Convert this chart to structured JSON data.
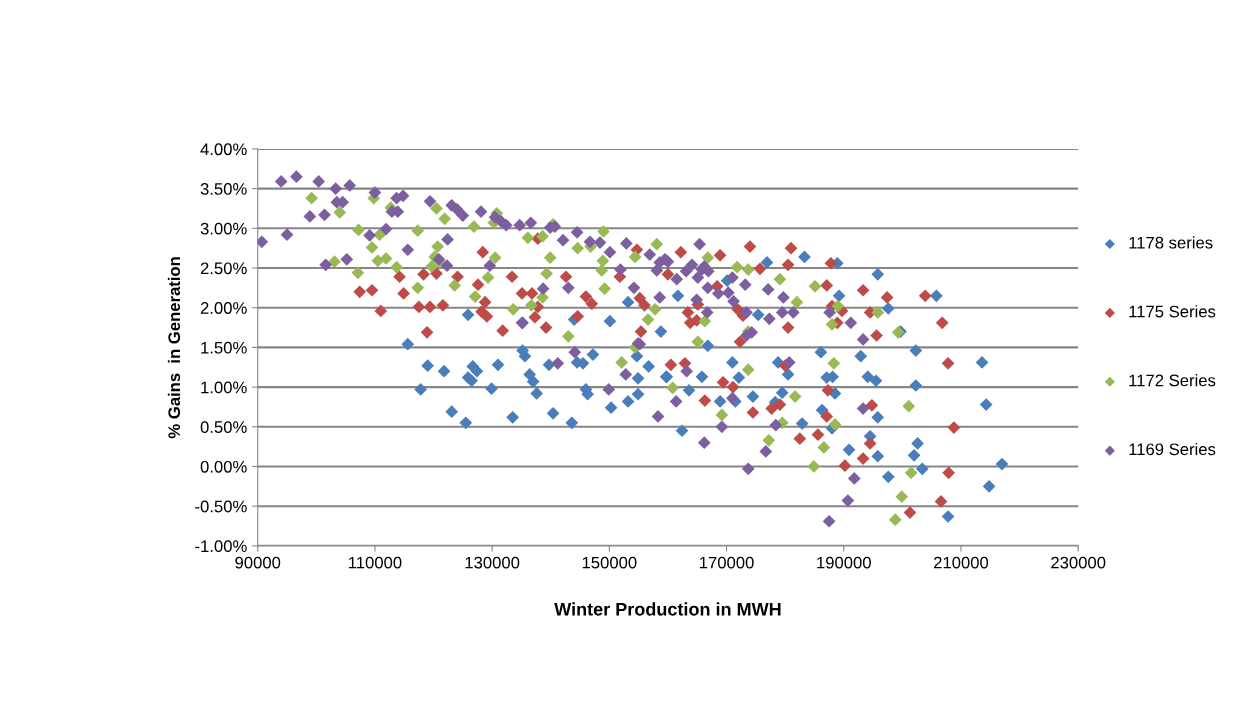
{
  "chart_data": {
    "type": "scatter",
    "xlabel": "Winter Production in MWH",
    "ylabel": "% Gains  in Generation",
    "xlim": [
      90000,
      230000
    ],
    "xticks": [
      90000,
      110000,
      130000,
      150000,
      170000,
      190000,
      210000,
      230000
    ],
    "ylim": [
      -1,
      4
    ],
    "yticks": [
      {
        "value": -1,
        "label": "-1.00%"
      },
      {
        "value": -0.5,
        "label": "-0.50%"
      },
      {
        "value": 0,
        "label": "0.00%"
      },
      {
        "value": 0.5,
        "label": "0.50%"
      },
      {
        "value": 1,
        "label": "1.00%"
      },
      {
        "value": 1.5,
        "label": "1.50%"
      },
      {
        "value": 2,
        "label": "2.00%"
      },
      {
        "value": 2.5,
        "label": "2.50%"
      },
      {
        "value": 3,
        "label": "3.00%"
      },
      {
        "value": 3.5,
        "label": "3.50%"
      },
      {
        "value": 4,
        "label": "4.00%"
      }
    ],
    "grid": "y",
    "legend": "right",
    "marker": "diamond",
    "series": [
      {
        "name": "1178 series",
        "color": "#4a7ebb",
        "x": [
          115600,
          119000,
          117800,
          121800,
          123100,
          125500,
          125900,
          126700,
          127400,
          126500,
          129900,
          131000,
          133500,
          135200,
          135600,
          136400,
          137000,
          137600,
          139700,
          140400,
          143600,
          144500,
          145500,
          146000,
          146300,
          147200,
          150300,
          153200,
          154900,
          154700,
          154900,
          156700,
          159700,
          125900,
          153200,
          150100,
          144000,
          135200,
          158800,
          161700,
          170100,
          176900,
          183300,
          188900,
          195800,
          189200,
          197600,
          175400,
          199700,
          205800,
          166800,
          159800,
          163600,
          165800,
          171000,
          172100,
          168900,
          171500,
          174500,
          162400,
          178800,
          180500,
          179500,
          178300,
          186100,
          187100,
          188100,
          188500,
          186300,
          188000,
          182900,
          192900,
          194100,
          195500,
          195800,
          194500,
          190900,
          195800,
          197600,
          202300,
          202300,
          202600,
          202000,
          203400,
          207800,
          213600,
          214300,
          214800,
          217000
        ],
        "values": [
          1.54,
          1.27,
          0.97,
          1.2,
          0.69,
          0.55,
          1.12,
          1.26,
          1.2,
          1.08,
          0.98,
          1.28,
          0.62,
          1.46,
          1.39,
          1.16,
          1.07,
          0.92,
          1.28,
          0.67,
          0.55,
          1.31,
          1.3,
          0.97,
          0.91,
          1.41,
          0.74,
          0.82,
          0.91,
          1.39,
          1.11,
          1.26,
          1.13,
          1.91,
          2.07,
          1.83,
          1.85,
          1.81,
          1.7,
          2.15,
          2.34,
          2.57,
          2.64,
          2.56,
          2.42,
          2.15,
          1.99,
          1.91,
          1.7,
          2.15,
          1.52,
          1.13,
          0.96,
          1.13,
          1.31,
          1.12,
          0.82,
          0.82,
          0.88,
          0.45,
          1.31,
          1.16,
          0.93,
          0.81,
          1.44,
          1.12,
          1.13,
          0.92,
          0.71,
          0.48,
          0.54,
          1.39,
          1.13,
          1.08,
          0.62,
          0.38,
          0.21,
          0.13,
          -0.13,
          1.46,
          1.02,
          0.29,
          0.14,
          -0.03,
          -0.63,
          1.31,
          0.78,
          -0.25,
          0.03
        ]
      },
      {
        "name": "1175 Series",
        "color": "#be4b48",
        "x": [
          107400,
          109500,
          111000,
          114200,
          114900,
          118300,
          120500,
          124100,
          118900,
          117500,
          119400,
          121600,
          128400,
          127600,
          128800,
          128200,
          129100,
          131800,
          133400,
          135100,
          136800,
          137800,
          137800,
          137300,
          139200,
          142600,
          144600,
          146000,
          147000,
          151800,
          154700,
          155200,
          156000,
          155400,
          160000,
          162200,
          168900,
          174000,
          181000,
          180500,
          187800,
          175700,
          168400,
          187100,
          193300,
          197400,
          203900,
          206800,
          163400,
          165100,
          163800,
          164900,
          171900,
          172800,
          188000,
          189700,
          188900,
          194500,
          180500,
          172300,
          195600,
          160500,
          162900,
          166300,
          169400,
          171100,
          174500,
          177700,
          179100,
          180000,
          182500,
          185600,
          187300,
          187100,
          190200,
          193300,
          194500,
          194800,
          201300,
          206600,
          207800,
          207900,
          208800
        ],
        "values": [
          2.2,
          2.22,
          1.96,
          2.39,
          2.18,
          2.42,
          2.43,
          2.39,
          1.69,
          2.01,
          2.01,
          2.03,
          2.7,
          2.29,
          2.07,
          1.95,
          1.89,
          1.71,
          2.39,
          2.18,
          2.18,
          2.87,
          2.01,
          1.88,
          1.75,
          2.39,
          1.89,
          2.14,
          2.05,
          2.39,
          2.73,
          2.12,
          2.03,
          1.7,
          2.42,
          2.7,
          2.66,
          2.77,
          2.75,
          2.54,
          2.56,
          2.49,
          2.27,
          2.28,
          2.22,
          2.13,
          2.15,
          1.81,
          1.94,
          2.04,
          1.81,
          1.84,
          1.98,
          1.9,
          2.02,
          1.96,
          1.81,
          1.94,
          1.75,
          1.57,
          1.65,
          1.28,
          1.3,
          0.83,
          1.06,
          1.0,
          0.68,
          0.73,
          0.78,
          1.27,
          0.35,
          0.4,
          0.96,
          0.63,
          0.01,
          0.1,
          0.29,
          0.77,
          -0.58,
          -0.44,
          1.3,
          -0.08,
          0.49
        ]
      },
      {
        "name": "1172 Series",
        "color": "#98b954",
        "x": [
          99200,
          104000,
          109800,
          112700,
          107200,
          110800,
          109500,
          103100,
          110500,
          111900,
          113700,
          107100,
          117300,
          117300,
          120500,
          121900,
          120700,
          120200,
          121100,
          119700,
          123600,
          126900,
          130300,
          130800,
          130500,
          129300,
          127100,
          133600,
          136100,
          138600,
          140400,
          139900,
          139300,
          143000,
          149000,
          144600,
          146800,
          148900,
          148700,
          149200,
          158100,
          154400,
          156600,
          157800,
          136700,
          138600,
          166800,
          171800,
          173700,
          179100,
          185100,
          189000,
          166300,
          182000,
          188000,
          195800,
          173700,
          165100,
          199300,
          152100,
          188300,
          173700,
          160800,
          181700,
          169200,
          179500,
          188500,
          177200,
          186600,
          184900,
          201100,
          201500,
          199900,
          198800,
          154400
        ],
        "values": [
          3.38,
          3.2,
          3.38,
          3.26,
          2.98,
          2.92,
          2.76,
          2.58,
          2.59,
          2.62,
          2.51,
          2.44,
          2.97,
          2.25,
          3.25,
          3.12,
          2.77,
          2.64,
          2.58,
          2.52,
          2.28,
          3.02,
          3.07,
          3.19,
          2.63,
          2.38,
          2.14,
          1.98,
          2.88,
          2.9,
          3.05,
          2.63,
          2.43,
          1.64,
          2.96,
          2.75,
          2.77,
          2.59,
          2.47,
          2.24,
          2.8,
          2.64,
          1.85,
          1.98,
          2.03,
          2.13,
          2.63,
          2.51,
          2.48,
          2.36,
          2.27,
          2.02,
          1.83,
          2.07,
          1.79,
          1.94,
          1.7,
          1.57,
          1.69,
          1.31,
          1.3,
          1.22,
          0.99,
          0.88,
          0.65,
          0.55,
          0.53,
          0.33,
          0.24,
          0.0,
          0.76,
          -0.08,
          -0.38,
          -0.67,
          1.5
        ]
      },
      {
        "name": "1169 Series",
        "color": "#7d5fa0",
        "x": [
          90700,
          94000,
          95000,
          96600,
          98900,
          100400,
          101600,
          101400,
          103300,
          103500,
          104500,
          105700,
          105200,
          109100,
          110000,
          111900,
          112900,
          113700,
          114800,
          113900,
          115600,
          119400,
          120900,
          122300,
          122400,
          123100,
          124000,
          125000,
          128100,
          129600,
          130500,
          131500,
          132400,
          134700,
          135100,
          136600,
          138700,
          139900,
          140700,
          142100,
          143000,
          144500,
          146700,
          148400,
          150100,
          151900,
          152900,
          154200,
          155200,
          156900,
          158100,
          158600,
          158600,
          160000,
          161500,
          163100,
          164900,
          165400,
          166200,
          166900,
          168600,
          170300,
          171200,
          174300,
          177300,
          179500,
          180700,
          164100,
          165800,
          165100,
          166800,
          171000,
          173200,
          177100,
          179700,
          181400,
          166700,
          173400,
          187600,
          191200,
          193300,
          173400,
          159500,
          166200,
          173700,
          176700,
          178400,
          161400,
          169200,
          193300,
          191800,
          190700,
          187500,
          171000,
          163200,
          141200,
          144100,
          149900,
          152800,
          158300,
          154900
        ],
        "values": [
          2.83,
          3.59,
          2.92,
          3.65,
          3.15,
          3.59,
          2.54,
          3.17,
          3.5,
          3.33,
          3.33,
          3.54,
          2.61,
          2.91,
          3.45,
          2.99,
          3.21,
          3.38,
          3.41,
          3.21,
          2.73,
          3.34,
          2.61,
          2.53,
          2.86,
          3.29,
          3.24,
          3.16,
          3.21,
          2.53,
          3.14,
          3.09,
          3.04,
          3.04,
          1.81,
          3.07,
          2.24,
          3.01,
          3.02,
          2.85,
          2.25,
          2.95,
          2.83,
          2.82,
          2.7,
          2.48,
          2.81,
          2.25,
          1.54,
          2.67,
          2.47,
          2.13,
          2.57,
          2.58,
          2.36,
          2.46,
          2.1,
          2.8,
          2.52,
          2.46,
          2.18,
          2.19,
          2.08,
          1.69,
          1.86,
          1.94,
          1.31,
          2.54,
          2.48,
          2.38,
          2.25,
          2.38,
          2.29,
          2.23,
          2.13,
          1.94,
          1.94,
          1.94,
          1.94,
          1.81,
          1.6,
          1.65,
          2.61,
          0.3,
          -0.03,
          0.19,
          0.52,
          0.82,
          0.5,
          0.73,
          -0.15,
          -0.43,
          -0.69,
          0.86,
          1.2,
          1.3,
          1.44,
          0.97,
          1.16,
          0.63,
          1.55
        ]
      }
    ]
  }
}
